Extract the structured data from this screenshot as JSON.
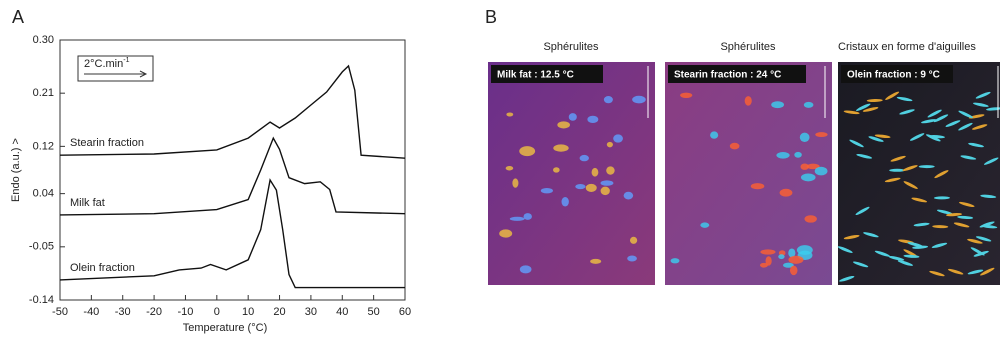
{
  "chart_data": {
    "type": "line",
    "panel_label": "A",
    "x_label": "Temperature (°C)",
    "y_label": "Endo (a.u.) >",
    "rate_label": {
      "text": "2°C.min",
      "superscript": "-1"
    },
    "xlim": [
      -50,
      60
    ],
    "xticks": [
      -50,
      -40,
      -30,
      -20,
      -10,
      0,
      10,
      20,
      30,
      40,
      50,
      60
    ],
    "ylim": [
      -0.14,
      0.3
    ],
    "yticks": [
      {
        "value": 0.3,
        "label": "0.30"
      },
      0.21,
      0.12,
      0.04,
      -0.05,
      -0.14
    ],
    "grid": false,
    "series": [
      {
        "name": "Stearin fraction",
        "color": "#111111",
        "x": [
          -50,
          -20,
          0,
          10,
          17,
          20,
          25,
          30,
          35,
          40,
          42,
          44,
          46,
          60
        ],
        "values": [
          0.105,
          0.107,
          0.114,
          0.134,
          0.161,
          0.151,
          0.168,
          0.19,
          0.212,
          0.246,
          0.256,
          0.215,
          0.105,
          0.1
        ]
      },
      {
        "name": "Milk fat",
        "color": "#111111",
        "x": [
          -50,
          -20,
          0,
          10,
          14,
          18,
          20,
          23,
          28,
          33,
          36,
          38,
          60
        ],
        "values": [
          0.004,
          0.006,
          0.013,
          0.03,
          0.08,
          0.134,
          0.115,
          0.067,
          0.057,
          0.06,
          0.047,
          0.009,
          0.006
        ]
      },
      {
        "name": "Olein fraction",
        "color": "#111111",
        "x": [
          -50,
          -20,
          -12,
          -5,
          -2,
          3,
          10,
          14,
          17,
          19,
          21,
          23,
          25,
          60
        ],
        "values": [
          -0.106,
          -0.099,
          -0.089,
          -0.086,
          -0.08,
          -0.089,
          -0.072,
          -0.021,
          0.063,
          0.046,
          -0.021,
          -0.097,
          -0.119,
          -0.119
        ]
      }
    ]
  },
  "panel_b": {
    "panel_label": "B",
    "images": [
      {
        "caption": "Sphérulites",
        "label": "Milk fat : 12.5 °C"
      },
      {
        "caption": "Sphérulites",
        "label": "Stearin fraction : 24 °C"
      },
      {
        "caption": "Cristaux en forme d'aiguilles",
        "label": "Olein fraction : 9 °C"
      }
    ]
  }
}
